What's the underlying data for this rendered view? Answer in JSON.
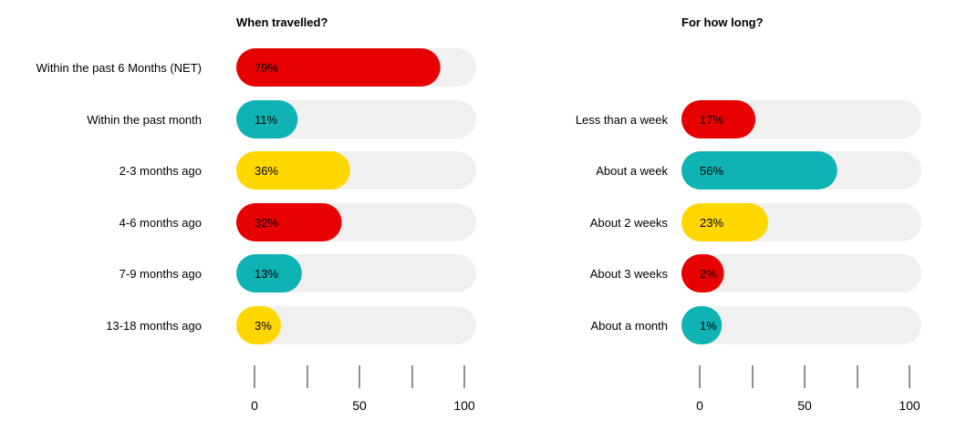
{
  "chart_data": [
    {
      "type": "bar",
      "orientation": "horizontal",
      "title": "When travelled?",
      "categories": [
        "Within the past 6 Months (NET)",
        "Within the past month",
        "2-3 months ago",
        "4-6 months ago",
        "7-9 months ago",
        "13-18 months ago"
      ],
      "values": [
        79,
        11,
        36,
        32,
        13,
        3
      ],
      "value_labels": [
        "79%",
        "11%",
        "36%",
        "32%",
        "13%",
        "3%"
      ],
      "bar_colors": [
        "#e60000",
        "#0fb3b3",
        "#ffd700",
        "#e60000",
        "#0fb3b3",
        "#ffd700"
      ],
      "xlim": [
        0,
        100
      ],
      "xticks": [
        0,
        25,
        50,
        75,
        100
      ],
      "xtick_labels": [
        "0",
        "",
        "50",
        "",
        "100"
      ],
      "xlabel": "",
      "ylabel": ""
    },
    {
      "type": "bar",
      "orientation": "horizontal",
      "title": "For how long?",
      "categories": [
        "Less than a week",
        "About a week",
        "About 2 weeks",
        "About 3 weeks",
        "About a month"
      ],
      "values": [
        17,
        56,
        23,
        2,
        1
      ],
      "value_labels": [
        "17%",
        "56%",
        "23%",
        "2%",
        "1%"
      ],
      "bar_colors": [
        "#e60000",
        "#0fb3b3",
        "#ffd700",
        "#e60000",
        "#0fb3b3"
      ],
      "xlim": [
        0,
        100
      ],
      "xticks": [
        0,
        25,
        50,
        75,
        100
      ],
      "xtick_labels": [
        "0",
        "",
        "50",
        "",
        "100"
      ],
      "xlabel": "",
      "ylabel": ""
    }
  ],
  "colors": {
    "track": "#f0f0f0",
    "axis": "#222222"
  }
}
